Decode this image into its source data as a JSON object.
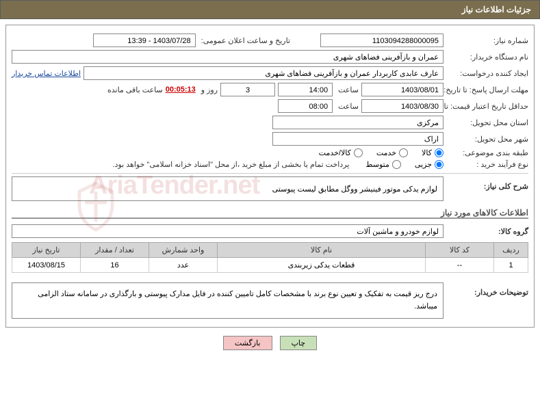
{
  "header": {
    "title": "جزئیات اطلاعات نیاز"
  },
  "form": {
    "needNo_label": "شماره نیاز:",
    "needNo": "1103094288000095",
    "announceDate_label": "تاریخ و ساعت اعلان عمومی:",
    "announceDate": "1403/07/28 - 13:39",
    "buyerOrg_label": "نام دستگاه خریدار:",
    "buyerOrg": "عمران و بازآفرینی فضاهای شهری",
    "requester_label": "ایجاد کننده درخواست:",
    "requester": "عارف عابدی کاربردار عمران و بازآفرینی فضاهای شهری",
    "contact_link": "اطلاعات تماس خریدار",
    "deadline_label": "مهلت ارسال پاسخ: تا تاریخ:",
    "deadline_date": "1403/08/01",
    "time_label": "ساعت",
    "deadline_time": "14:00",
    "days": "3",
    "days_label": "روز و",
    "countdown": "00:05:13",
    "remain_label": "ساعت باقی مانده",
    "validity_label": "حداقل تاریخ اعتبار قیمت: تا تاریخ:",
    "validity_date": "1403/08/30",
    "validity_time": "08:00",
    "province_label": "استان محل تحویل:",
    "province": "مرکزی",
    "city_label": "شهر محل تحویل:",
    "city": "اراک",
    "category_label": "طبقه بندی موضوعی:",
    "cat_goods": "کالا",
    "cat_service": "خدمت",
    "cat_both": "کالا/خدمت",
    "process_label": "نوع فرآیند خرید :",
    "proc_small": "جزیی",
    "proc_medium": "متوسط",
    "process_note": "پرداخت تمام یا بخشی از مبلغ خرید ،از محل \"اسناد خزانه اسلامی\" خواهد بود.",
    "general_label": "شرح کلی نیاز:",
    "general_desc": "لوازم یدکی موتور فینیشر ووگل مطابق لیست پیوستی",
    "items_title": "اطلاعات کالاهای مورد نیاز",
    "group_label": "گروه کالا:",
    "group_value": "لوازم خودرو و ماشین آلات",
    "buyer_notes_label": "توضیحات خریدار:",
    "buyer_notes": "درج ریز قیمت به تفکیک و تعیین نوع برند با مشخصات کامل تامیین کننده در فایل مدارک پیوستی و بارگذاری در سامانه ستاد الزامی میباشد."
  },
  "table": {
    "headers": {
      "row": "ردیف",
      "code": "کد کالا",
      "name": "نام کالا",
      "unit": "واحد شمارش",
      "qty": "تعداد / مقدار",
      "date": "تاریخ نیاز"
    },
    "rows": [
      {
        "row": "1",
        "code": "--",
        "name": "قطعات یدکی زیربندی",
        "unit": "عدد",
        "qty": "16",
        "date": "1403/08/15"
      }
    ]
  },
  "buttons": {
    "print": "چاپ",
    "back": "بازگشت"
  },
  "colors": {
    "header_bg": "#7a6e4e",
    "th_bg": "#d5d5d5",
    "btn_print": "#c8e0b8",
    "btn_back": "#f5c4c4"
  }
}
